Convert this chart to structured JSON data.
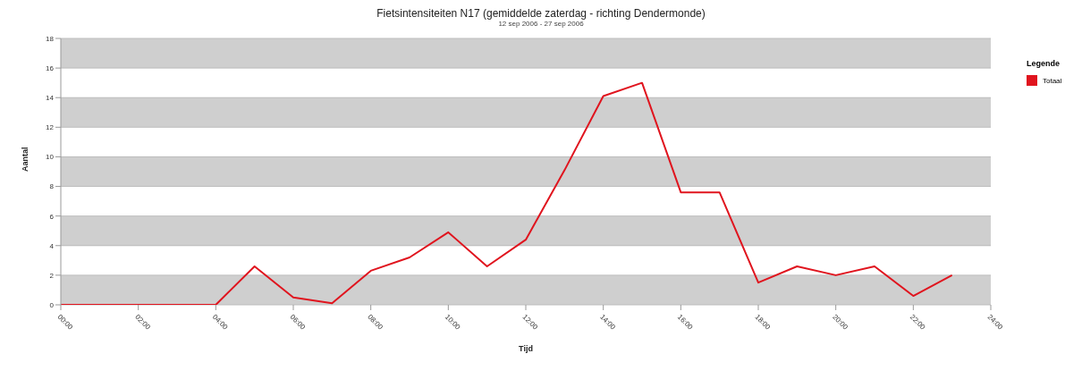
{
  "chart_data": {
    "type": "line",
    "title": "Fietsintensiteiten N17 (gemiddelde zaterdag - richting Dendermonde)",
    "subtitle": "12 sep 2006 - 27 sep 2006",
    "xlabel": "Tijd",
    "ylabel": "Aantal",
    "legend_title": "Legende",
    "legend": "top right",
    "grid": "y",
    "marker": "none",
    "line_style": "solid",
    "x": [
      0,
      1,
      2,
      3,
      4,
      5,
      6,
      7,
      8,
      9,
      10,
      11,
      12,
      13,
      14,
      15,
      16,
      17,
      18,
      19,
      20,
      21,
      22,
      23
    ],
    "series": [
      {
        "name": "Totaal",
        "color": "#e0141e",
        "values": [
          0,
          0,
          0,
          0,
          0,
          2.6,
          0.5,
          0.1,
          2.3,
          3.2,
          4.9,
          2.6,
          4.4,
          9.1,
          14.1,
          15.0,
          7.6,
          7.6,
          1.5,
          2.6,
          2.0,
          2.6,
          0.6,
          2.0
        ]
      }
    ],
    "xlim": [
      0,
      24
    ],
    "xticks": [
      {
        "value": 0,
        "label": "00:00"
      },
      {
        "value": 2,
        "label": "02:00"
      },
      {
        "value": 4,
        "label": "04:00"
      },
      {
        "value": 6,
        "label": "06:00"
      },
      {
        "value": 8,
        "label": "08:00"
      },
      {
        "value": 10,
        "label": "10:00"
      },
      {
        "value": 12,
        "label": "12:00"
      },
      {
        "value": 14,
        "label": "14:00"
      },
      {
        "value": 16,
        "label": "16:00"
      },
      {
        "value": 18,
        "label": "18:00"
      },
      {
        "value": 20,
        "label": "20:00"
      },
      {
        "value": 22,
        "label": "22:00"
      },
      {
        "value": 24,
        "label": "24:00"
      }
    ],
    "ylim": [
      0,
      18
    ],
    "yticks": [
      0,
      2,
      4,
      6,
      8,
      10,
      12,
      14,
      16,
      18
    ]
  }
}
